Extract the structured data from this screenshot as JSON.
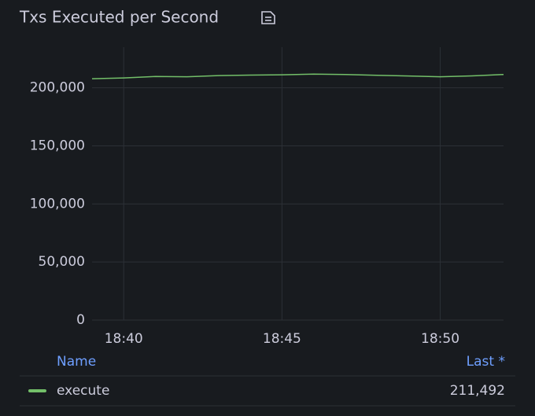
{
  "chart_data": {
    "type": "line",
    "title": "Txs Executed per Second",
    "x": [
      "18:39",
      "18:40",
      "18:41",
      "18:42",
      "18:43",
      "18:44",
      "18:45",
      "18:46",
      "18:47",
      "18:48",
      "18:49",
      "18:50",
      "18:51",
      "18:52"
    ],
    "series": [
      {
        "name": "execute",
        "color": "#73bf69",
        "values": [
          207800,
          208500,
          209800,
          209500,
          210500,
          211000,
          211200,
          211800,
          211500,
          210800,
          210200,
          209500,
          210300,
          211492
        ],
        "last": {
          "value": 211492,
          "label": "211,492"
        }
      }
    ],
    "xlim": [
      "18:39",
      "18:52"
    ],
    "xticks": [
      "18:40",
      "18:45",
      "18:50"
    ],
    "ylim": [
      0,
      235000
    ],
    "yticks": [
      0,
      {
        "value": 50000,
        "label": "50,000"
      },
      {
        "value": 100000,
        "label": "100,000"
      },
      {
        "value": 150000,
        "label": "150,000"
      },
      {
        "value": 200000,
        "label": "200,000"
      }
    ],
    "grid": true,
    "legend": {
      "columns": [
        "Name",
        "Last *"
      ]
    }
  }
}
